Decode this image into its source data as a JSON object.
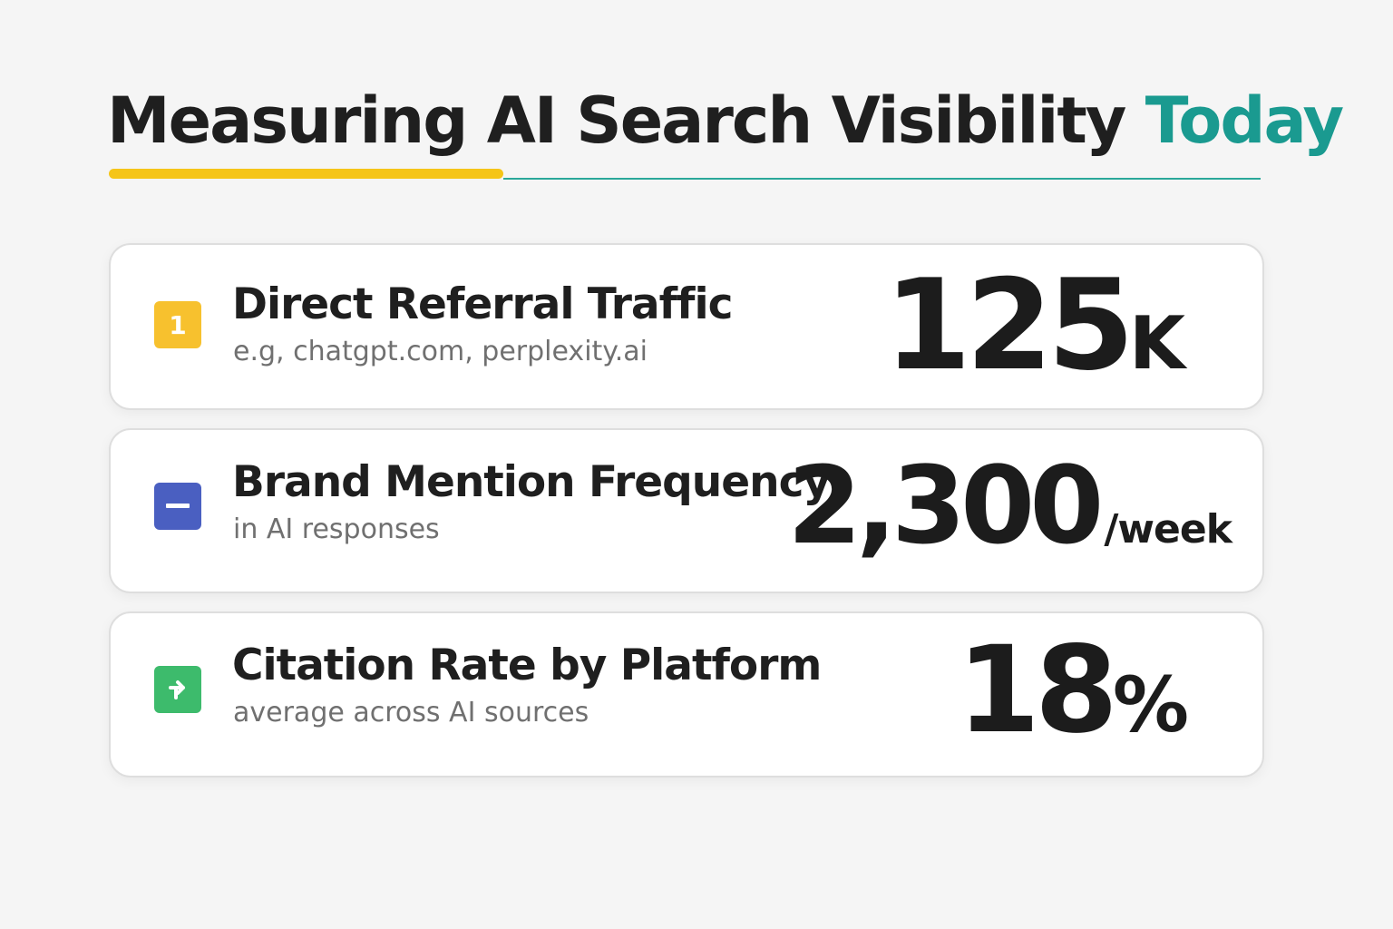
{
  "header": {
    "title": "Measuring AI Search Visibility",
    "title_highlight": "Today"
  },
  "cards": [
    {
      "icon": "1",
      "title": "Direct Referral Traffic",
      "subtitle": "e.g, chatgpt.com, perplexity.ai",
      "value": "125",
      "unit": "K"
    },
    {
      "title": "Brand Mention Frequency",
      "subtitle": "in AI responses",
      "value": "2,300",
      "unit": "/week"
    },
    {
      "title": "Citation Rate by Platform",
      "subtitle": "average across AI sources",
      "value": "18",
      "unit": "%"
    }
  ]
}
